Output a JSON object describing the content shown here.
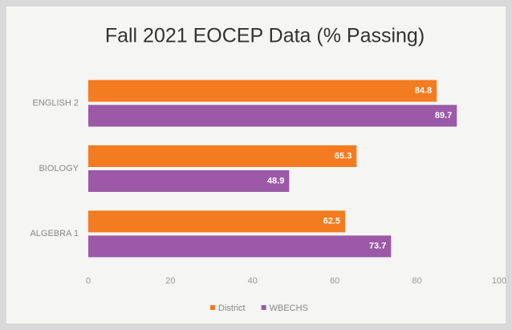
{
  "chart_data": {
    "type": "hbar",
    "title": "Fall 2021 EOCEP Data (% Passing)",
    "categories": [
      "ENGLISH 2",
      "BIOLOGY",
      "ALGEBRA 1"
    ],
    "series": [
      {
        "name": "District",
        "color": "#f47b20",
        "values": [
          84.8,
          65.3,
          62.5
        ]
      },
      {
        "name": "WBECHS",
        "color": "#9b59a8",
        "values": [
          89.7,
          48.9,
          73.7
        ]
      }
    ],
    "xlim": [
      0,
      100
    ],
    "xticks": [
      0,
      20,
      40,
      60,
      80,
      100
    ],
    "grid": false,
    "legend": "bottom"
  }
}
